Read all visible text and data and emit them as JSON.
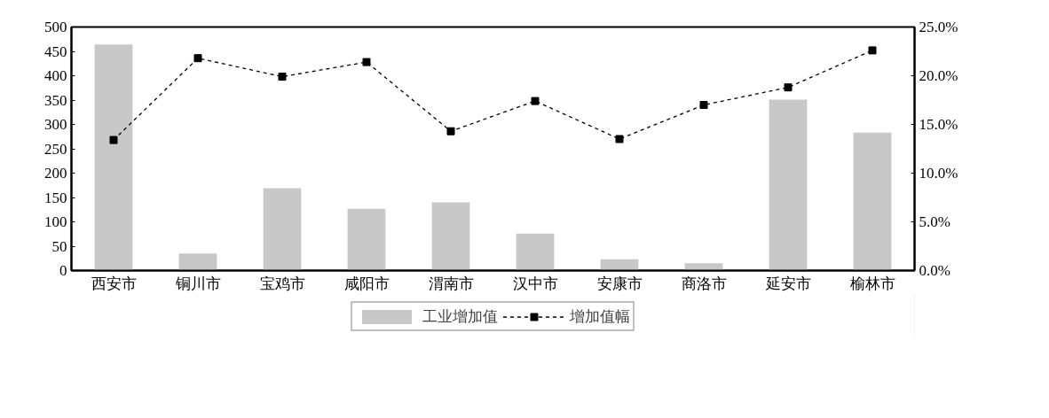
{
  "chart_data": {
    "type": "bar",
    "categories": [
      "西安市",
      "铜川市",
      "宝鸡市",
      "咸阳市",
      "渭南市",
      "汉中市",
      "安康市",
      "商洛市",
      "延安市",
      "榆林市"
    ],
    "series": [
      {
        "name": "工业增加值",
        "color": "#c8c8c8",
        "values": [
          464,
          35,
          169,
          127,
          140,
          76,
          23,
          15,
          351,
          283
        ]
      },
      {
        "name": "增加值幅",
        "type": "line",
        "axis": "y2",
        "color": "#000000",
        "marker": "square",
        "line_style": "dashed",
        "values": [
          13.4,
          21.8,
          19.9,
          21.4,
          14.3,
          17.4,
          13.5,
          17.0,
          18.8,
          22.6
        ]
      }
    ],
    "ylim": [
      0,
      500
    ],
    "yticks": [
      0,
      50,
      100,
      150,
      200,
      250,
      300,
      350,
      400,
      450,
      500
    ],
    "y2lim": [
      0,
      25
    ],
    "y2ticks": [
      {
        "value": 0,
        "label": "0.0%"
      },
      {
        "value": 5,
        "label": "5.0%"
      },
      {
        "value": 10,
        "label": "10.0%"
      },
      {
        "value": 15,
        "label": "15.0%"
      },
      {
        "value": 20,
        "label": "20.0%"
      },
      {
        "value": 25,
        "label": "25.0%"
      }
    ],
    "grid": false,
    "legend": "bottom"
  }
}
